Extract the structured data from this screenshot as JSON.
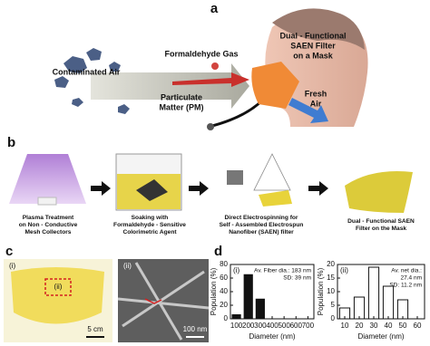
{
  "panels": {
    "a": {
      "label": "a",
      "contaminated_air": "Contaminated Air",
      "formaldehyde_gas": "Formaldehyde Gas",
      "particulate_matter": [
        "Particulate",
        "Matter (PM)"
      ],
      "filter": [
        "Dual - Functional",
        "SAEN Filter",
        "on a Mask"
      ],
      "fresh_air": [
        "Fresh",
        "Air"
      ]
    },
    "b": {
      "label": "b",
      "steps": [
        [
          "Plasma Treatment",
          "on Non - Conductive",
          "Mesh Collectors"
        ],
        [
          "Soaking with",
          "Formaldehyde - Sensitive",
          "Colorimetric Agent"
        ],
        [
          "Direct Electrospinning for",
          "Self - Assembled Electrospun",
          "Nanofiber (SAEN) filter"
        ],
        [
          "Dual - Functional SAEN",
          "Filter on the Mask"
        ]
      ]
    },
    "c": {
      "label": "c",
      "photo_label": "(i)",
      "inset_label": "(ii)",
      "sem_label": "(ii)",
      "photo_scale": "5 cm",
      "sem_scale": "100 nm"
    },
    "d": {
      "label": "d"
    }
  },
  "chart_data": [
    {
      "type": "bar",
      "panel_label": "(i)",
      "annotation": [
        "Av. Fiber dia.: 183 nm",
        "SD: 39 nm"
      ],
      "x_label": "Diameter (nm)",
      "y_label": "Population (%)",
      "x": [
        100,
        200,
        300
      ],
      "values": [
        6,
        65,
        29
      ],
      "color": "#111111",
      "xlim": [
        50,
        750
      ],
      "xticks": [
        100,
        200,
        300,
        400,
        500,
        600,
        700
      ],
      "ylim": [
        0,
        80
      ],
      "yticks": [
        0,
        20,
        40,
        60,
        80
      ]
    },
    {
      "type": "bar",
      "panel_label": "(ii)",
      "annotation": [
        "Av. net dia.:",
        "27.4 nm",
        "SD: 11.2 nm"
      ],
      "x_label": "Diameter (nm)",
      "y_label": "Population (%)",
      "x": [
        10,
        20,
        30,
        40,
        50
      ],
      "values": [
        4,
        8,
        19,
        12,
        7
      ],
      "color": "#ffffff",
      "xlim": [
        5,
        65
      ],
      "xticks": [
        10,
        20,
        30,
        40,
        50,
        60
      ],
      "ylim": [
        0,
        20
      ],
      "yticks": [
        0,
        5,
        10,
        15,
        20
      ]
    }
  ]
}
